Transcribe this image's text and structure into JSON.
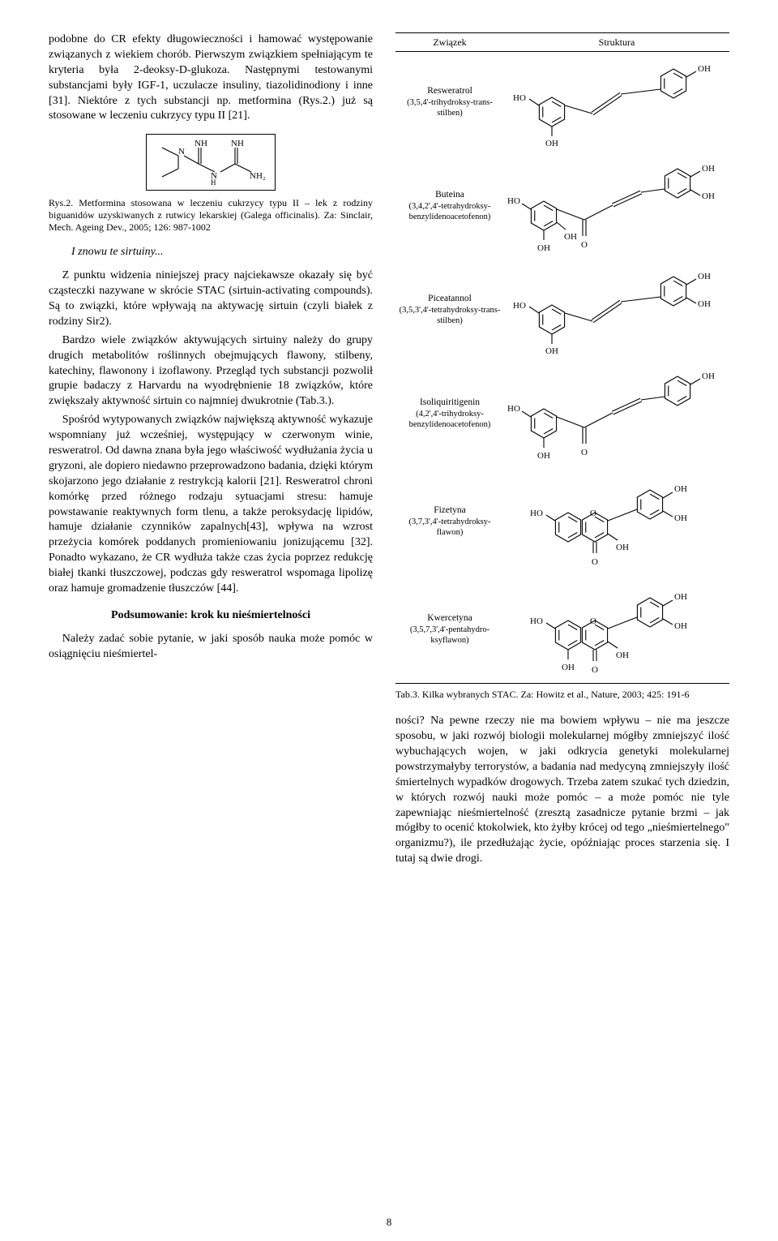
{
  "left": {
    "p1": "podobne do CR efekty długowieczności i hamować występowanie związanych z wiekiem chorób. Pierwszym związkiem spełniającym te kryteria była 2-deoksy-D-glukoza. Następnymi testowanymi substancjami były IGF-1, uczulacze insuliny, tiazolidinodiony i inne [31]. Niektóre z tych substancji np. metformina (Rys.2.) już są stosowane w leczeniu cukrzycy typu II [21].",
    "fig2_formula_labels": {
      "nh_a": "NH",
      "nh_b": "NH",
      "n_a": "N",
      "n_b": "N",
      "h": "H",
      "nh2": "NH₂"
    },
    "fig2_caption": "Rys.2. Metformina stosowana w leczeniu cukrzycy typu II – lek z rodziny biguanidów uzyskiwanych z rutwicy lekarskiej (Galega officinalis). Za: Sinclair, Mech. Ageing Dev., 2005; 126: 987-1002",
    "sub_italic": "I znowu te sirtuiny...",
    "p2": "Z punktu widzenia niniejszej pracy najciekawsze okazały się być cząsteczki nazywane w skrócie STAC (sirtuin-activating compounds). Są to związki, które wpływają na aktywację sirtuin (czyli białek z rodziny Sir2).",
    "p3": "Bardzo wiele związków aktywujących sirtuiny należy do grupy drugich metabolitów roślinnych obejmujących flawony, stilbeny, katechiny, flawonony i izoflawony. Przegląd tych substancji pozwolił grupie badaczy z Harvardu na wyodrębnienie 18 związków, które zwiększały aktywność sirtuin co najmniej dwukrotnie (Tab.3.).",
    "p4": "Spośród wytypowanych związków największą aktywność wykazuje wspomniany już wcześniej, występujący w czerwonym winie, resweratrol. Od dawna znana była jego właściwość wydłużania życia u gryzoni, ale dopiero niedawno przeprowadzono badania, dzięki którym skojarzono jego działanie z restrykcją kalorii [21]. Resweratrol chroni komórkę przed różnego rodzaju sytuacjami stresu: hamuje powstawanie reaktywnych form tlenu, a także peroksydację lipidów, hamuje działanie czynników zapalnych[43], wpływa na wzrost przeżycia komórek poddanych promieniowaniu jonizującemu [32]. Ponadto wykazano, że CR wydłuża także czas życia poprzez redukcję białej tkanki tłuszczowej, podczas gdy resweratrol wspomaga lipolizę oraz hamuje gromadzenie tłuszczów [44].",
    "heading": "Podsumowanie: krok ku nieśmiertelności",
    "p5": "Należy zadać sobie pytanie, w jaki sposób nauka może pomóc w osiągnięciu nieśmiertel-"
  },
  "table": {
    "col_compound": "Związek",
    "col_structure": "Struktura",
    "oh_label": "OH",
    "ho_label": "HO",
    "o_label": "O",
    "rows": [
      {
        "name": "Resweratrol",
        "desc": "(3,5,4'-trihydroksy-trans-stilben)"
      },
      {
        "name": "Buteina",
        "desc": "(3,4,2',4'-tetrahydroksy-benzylidenoacetofenon)"
      },
      {
        "name": "Piceatannol",
        "desc": "(3,5,3',4'-tetrahydroksy-trans-stilben)"
      },
      {
        "name": "Isoliquiritigenin",
        "desc": "(4,2',4'-trihydroksy-benzylidenoacetofenon)"
      },
      {
        "name": "Fizetyna",
        "desc": "(3,7,3',4'-tetrahydroksy-flawon)"
      },
      {
        "name": "Kwercetyna",
        "desc": "(3,5,7,3',4'-pentahydro-ksyflawon)"
      }
    ],
    "caption": "Tab.3. Kilka wybranych STAC. Za: Howitz et al., Nature, 2003; 425: 191-6"
  },
  "right": {
    "p1": "ności? Na pewne rzeczy nie ma bowiem wpływu – nie ma jeszcze sposobu, w jaki rozwój biologii molekularnej mógłby zmniejszyć ilość wybuchających wojen, w jaki odkrycia genetyki molekularnej powstrzymałyby terrorystów, a badania nad medycyną zmniejszyły ilość śmiertelnych wypadków drogowych. Trzeba zatem szukać tych dziedzin, w których rozwój nauki może pomóc – a może pomóc nie tyle zapewniając nieśmiertelność (zresztą zasadnicze pytanie brzmi – jak mógłby to ocenić ktokolwiek, kto żyłby krócej od tego „nieśmiertelnego\" organizmu?), ile przedłużając życie, opóźniając proces starzenia się. I tutaj są dwie drogi."
  },
  "page_number": "8",
  "style": {
    "stroke": "#000000",
    "stroke_width": 1.1,
    "font_label": "11px"
  }
}
